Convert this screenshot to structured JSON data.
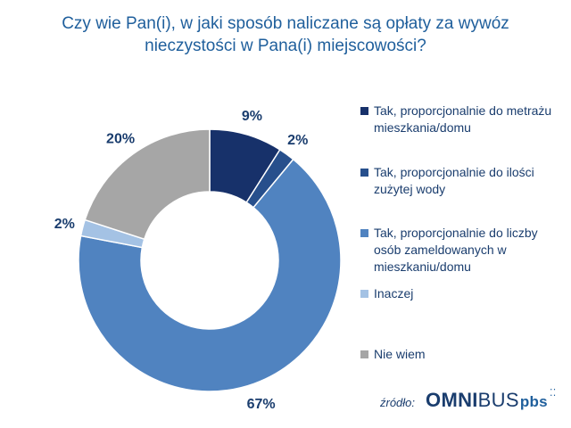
{
  "title": "Czy wie Pan(i), w jaki sposób naliczane są opłaty za wywóz nieczystości w Pana(i) miejscowości?",
  "chart_data": {
    "type": "pie",
    "variant": "donut",
    "title": "Czy wie Pan(i), w jaki sposób naliczane są opłaty za wywóz nieczystości w Pana(i) miejscowości?",
    "categories": [
      "Tak, proporcjonalnie do metrażu mieszkania/domu",
      "Tak, proporcjonalnie do ilości zużytej wody",
      "Tak, proporcjonalnie do liczby osób zameldowanych w mieszkaniu/domu",
      "Inaczej",
      "Nie wiem"
    ],
    "values": [
      9,
      2,
      67,
      2,
      20
    ],
    "labels": [
      "9%",
      "2%",
      "67%",
      "2%",
      "20%"
    ],
    "colors": [
      "#17316a",
      "#274f8c",
      "#5083c0",
      "#a4c2e4",
      "#a6a6a6"
    ],
    "legend_position": "right"
  },
  "source": {
    "label": "źródło:",
    "logo_bold": "OMNI",
    "logo_regular": "BUS",
    "logo_suffix": "pbs",
    "logo_dots": "⁚⁚"
  }
}
